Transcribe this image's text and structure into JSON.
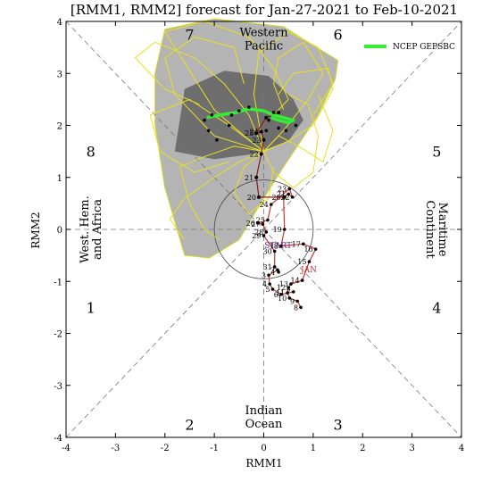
{
  "chart_data": {
    "type": "scatter",
    "title": "[RMM1, RMM2] forecast for Jan-27-2021 to Feb-10-2021",
    "xlabel": "RMM1",
    "ylabel": "RMM2",
    "xlim": [
      -4,
      4
    ],
    "ylim": [
      -4,
      4
    ],
    "xticks": [
      "-4",
      "-3",
      "-2",
      "-1",
      "0",
      "1",
      "2",
      "3",
      "4"
    ],
    "yticks": [
      "-4",
      "-3",
      "-2",
      "-1",
      "0",
      "1",
      "2",
      "3",
      "4"
    ],
    "grid": false,
    "legend": {
      "position": "top-right",
      "label": "NCEP GEPSBC",
      "color": "#33ee33"
    },
    "phase_numbers": [
      {
        "label": "1",
        "x": -3.5,
        "y": -1.5
      },
      {
        "label": "2",
        "x": -1.5,
        "y": -3.75
      },
      {
        "label": "3",
        "x": 1.5,
        "y": -3.75
      },
      {
        "label": "4",
        "x": 3.5,
        "y": -1.5
      },
      {
        "label": "5",
        "x": 3.5,
        "y": 1.5
      },
      {
        "label": "6",
        "x": 1.5,
        "y": 3.75
      },
      {
        "label": "7",
        "x": -1.5,
        "y": 3.75
      },
      {
        "label": "8",
        "x": -3.5,
        "y": 1.5
      }
    ],
    "region_labels": {
      "top": [
        "Western",
        "Pacific"
      ],
      "bottom": [
        "Indian",
        "Ocean"
      ],
      "left": [
        "West. Hem.",
        "and Africa"
      ],
      "right": [
        "Maritime",
        "Continent"
      ]
    },
    "observed": {
      "color": "#cc3333",
      "start_label": "START",
      "month_label": "JAN",
      "points": [
        {
          "label": "8",
          "x": 0.75,
          "y": -1.5
        },
        {
          "label": "9",
          "x": 0.68,
          "y": -1.38
        },
        {
          "label": "10",
          "x": 0.52,
          "y": -1.32
        },
        {
          "label": "11",
          "x": 0.48,
          "y": -1.22
        },
        {
          "label": "12",
          "x": 0.5,
          "y": -1.12
        },
        {
          "label": "13",
          "x": 0.55,
          "y": -1.05
        },
        {
          "label": "14",
          "x": 0.78,
          "y": -0.98
        },
        {
          "label": "15",
          "x": 0.92,
          "y": -0.62
        },
        {
          "label": "16",
          "x": 1.05,
          "y": -0.38
        },
        {
          "label": "17",
          "x": 0.8,
          "y": -0.28
        },
        {
          "label": "18",
          "x": 0.35,
          "y": -0.32
        },
        {
          "label": "19",
          "x": 0.42,
          "y": 0.0
        },
        {
          "label": "20",
          "x": 0.4,
          "y": 0.62
        },
        {
          "label": "21",
          "x": 0.5,
          "y": 0.68
        },
        {
          "label": "22",
          "x": 0.58,
          "y": 0.62
        },
        {
          "label": "23",
          "x": 0.52,
          "y": 0.78
        },
        {
          "label": "24",
          "x": 0.15,
          "y": 0.48
        },
        {
          "label": "25",
          "x": 0.08,
          "y": 0.18
        },
        {
          "label": "26",
          "x": -0.12,
          "y": 0.12
        },
        {
          "label": "27",
          "x": -0.02,
          "y": 0.1
        },
        {
          "label": "28",
          "x": 0.05,
          "y": -0.05
        },
        {
          "label": "29",
          "x": 0.0,
          "y": -0.12
        },
        {
          "label": "30",
          "x": 0.22,
          "y": -0.42
        },
        {
          "label": "31",
          "x": 0.22,
          "y": -0.72
        },
        {
          "label": "1",
          "x": 0.3,
          "y": -0.82
        },
        {
          "label": "2",
          "x": 0.28,
          "y": -0.78
        },
        {
          "label": "3",
          "x": 0.1,
          "y": -0.88
        },
        {
          "label": "4",
          "x": 0.12,
          "y": -1.05
        },
        {
          "label": "5",
          "x": 0.18,
          "y": -1.15
        },
        {
          "label": "6",
          "x": 0.35,
          "y": -1.25
        },
        {
          "label": "7",
          "x": 0.6,
          "y": -1.2
        }
      ]
    },
    "forecast_mean": {
      "color": "#8b1a1a",
      "points": [
        {
          "label": "",
          "x": 0.42,
          "y": 0.62
        },
        {
          "label": "20",
          "x": -0.1,
          "y": 0.62
        },
        {
          "label": "21",
          "x": -0.15,
          "y": 1.0
        },
        {
          "label": "22",
          "x": -0.05,
          "y": 1.45
        },
        {
          "label": "23",
          "x": 0.0,
          "y": 1.72
        },
        {
          "label": "24",
          "x": -0.05,
          "y": 1.88
        },
        {
          "label": "25",
          "x": -0.15,
          "y": 1.85
        },
        {
          "label": "",
          "x": 0.05,
          "y": 2.15
        },
        {
          "label": "",
          "x": 0.3,
          "y": 2.25
        }
      ]
    },
    "gepsbc_trajectory": [
      {
        "x": -1.15,
        "y": 2.15
      },
      {
        "x": -0.9,
        "y": 2.2
      },
      {
        "x": -0.55,
        "y": 2.25
      },
      {
        "x": -0.3,
        "y": 2.32
      },
      {
        "x": 0.0,
        "y": 2.28
      },
      {
        "x": 0.2,
        "y": 2.2
      },
      {
        "x": 0.4,
        "y": 2.15
      },
      {
        "x": 0.6,
        "y": 2.1
      },
      {
        "x": 0.5,
        "y": 2.05
      },
      {
        "x": 0.3,
        "y": 2.1
      },
      {
        "x": 0.15,
        "y": 2.15
      }
    ],
    "dots": [
      {
        "x": -1.2,
        "y": 2.1
      },
      {
        "x": -1.05,
        "y": 2.2
      },
      {
        "x": -1.12,
        "y": 1.9
      },
      {
        "x": -0.95,
        "y": 1.72
      },
      {
        "x": -0.7,
        "y": 2.0
      },
      {
        "x": -0.5,
        "y": 2.28
      },
      {
        "x": -0.65,
        "y": 2.2
      },
      {
        "x": -0.3,
        "y": 2.35
      },
      {
        "x": 0.1,
        "y": 2.1
      },
      {
        "x": 0.45,
        "y": 1.9
      },
      {
        "x": 0.65,
        "y": 2.0
      },
      {
        "x": 0.3,
        "y": 1.95
      },
      {
        "x": 0.2,
        "y": 2.25
      },
      {
        "x": 0.05,
        "y": 1.9
      }
    ],
    "ensemble_members": [
      [
        [
          0.0,
          1.5
        ],
        [
          -0.4,
          1.8
        ],
        [
          -1.0,
          2.3
        ],
        [
          -1.6,
          3.2
        ],
        [
          -2.0,
          3.8
        ],
        [
          -1.2,
          4.0
        ],
        [
          -0.3,
          3.7
        ],
        [
          0.2,
          3.1
        ],
        [
          0.5,
          2.5
        ],
        [
          0.2,
          2.2
        ]
      ],
      [
        [
          0.0,
          1.5
        ],
        [
          0.4,
          1.9
        ],
        [
          0.9,
          2.5
        ],
        [
          1.2,
          3.0
        ],
        [
          0.8,
          3.6
        ],
        [
          0.3,
          3.3
        ],
        [
          0.2,
          2.8
        ],
        [
          0.4,
          2.3
        ]
      ],
      [
        [
          0.0,
          1.5
        ],
        [
          -0.6,
          1.6
        ],
        [
          -1.2,
          1.4
        ],
        [
          -1.7,
          1.2
        ],
        [
          -1.5,
          0.5
        ],
        [
          -1.2,
          0.0
        ],
        [
          -0.9,
          -0.2
        ]
      ],
      [
        [
          0.0,
          1.5
        ],
        [
          0.5,
          1.7
        ],
        [
          1.0,
          2.0
        ],
        [
          1.4,
          2.7
        ],
        [
          1.3,
          3.1
        ],
        [
          0.6,
          3.0
        ],
        [
          0.3,
          2.6
        ]
      ],
      [
        [
          0.0,
          1.5
        ],
        [
          -0.3,
          2.2
        ],
        [
          -0.8,
          2.8
        ],
        [
          -1.4,
          3.3
        ],
        [
          -2.2,
          3.6
        ],
        [
          -2.6,
          3.3
        ],
        [
          -2.0,
          2.7
        ],
        [
          -1.3,
          2.4
        ]
      ],
      [
        [
          0.0,
          1.5
        ],
        [
          0.2,
          1.1
        ],
        [
          0.6,
          0.8
        ],
        [
          1.0,
          1.1
        ],
        [
          1.1,
          1.8
        ],
        [
          0.9,
          2.4
        ],
        [
          0.5,
          2.6
        ]
      ],
      [
        [
          0.0,
          1.5
        ],
        [
          -0.5,
          1.3
        ],
        [
          -1.0,
          1.0
        ],
        [
          -1.6,
          0.6
        ],
        [
          -1.9,
          0.2
        ],
        [
          -1.6,
          -0.2
        ]
      ],
      [
        [
          0.0,
          1.5
        ],
        [
          -0.2,
          2.6
        ],
        [
          -0.1,
          3.4
        ],
        [
          0.5,
          3.8
        ],
        [
          1.1,
          3.5
        ],
        [
          1.4,
          2.8
        ],
        [
          1.0,
          2.2
        ]
      ],
      [
        [
          0.0,
          1.5
        ],
        [
          -0.7,
          2.0
        ],
        [
          -1.5,
          2.5
        ],
        [
          -2.3,
          2.2
        ],
        [
          -2.1,
          1.5
        ],
        [
          -1.4,
          1.1
        ],
        [
          -0.7,
          1.3
        ]
      ],
      [
        [
          0.0,
          1.5
        ],
        [
          0.3,
          1.8
        ],
        [
          0.7,
          1.6
        ],
        [
          1.2,
          1.3
        ],
        [
          1.4,
          1.9
        ],
        [
          1.1,
          2.6
        ]
      ],
      [
        [
          0.0,
          1.5
        ],
        [
          -1.0,
          1.8
        ],
        [
          -1.8,
          2.6
        ],
        [
          -2.0,
          3.3
        ],
        [
          -1.4,
          3.7
        ],
        [
          -0.6,
          3.5
        ],
        [
          -0.4,
          2.8
        ]
      ],
      [
        [
          0.0,
          1.5
        ],
        [
          -0.4,
          1.2
        ],
        [
          -0.6,
          0.7
        ],
        [
          -0.3,
          0.3
        ],
        [
          0.1,
          0.6
        ],
        [
          0.2,
          1.2
        ]
      ]
    ],
    "outer_spread_polygon": [
      [
        -2.2,
        3.0
      ],
      [
        -2.0,
        3.85
      ],
      [
        -1.0,
        4.05
      ],
      [
        0.4,
        3.9
      ],
      [
        0.9,
        3.6
      ],
      [
        1.5,
        3.25
      ],
      [
        1.45,
        2.9
      ],
      [
        1.1,
        2.2
      ],
      [
        0.4,
        1.2
      ],
      [
        0.0,
        0.6
      ],
      [
        -0.5,
        -0.2
      ],
      [
        -1.1,
        -0.55
      ],
      [
        -1.6,
        -0.5
      ],
      [
        -2.0,
        0.8
      ],
      [
        -2.2,
        2.0
      ]
    ],
    "inner_spread_polygon": [
      [
        -1.8,
        1.5
      ],
      [
        -1.6,
        2.7
      ],
      [
        -0.8,
        3.05
      ],
      [
        0.1,
        2.95
      ],
      [
        0.6,
        2.5
      ],
      [
        0.8,
        2.1
      ],
      [
        0.5,
        1.7
      ],
      [
        -0.2,
        1.45
      ],
      [
        -1.0,
        1.35
      ]
    ]
  }
}
